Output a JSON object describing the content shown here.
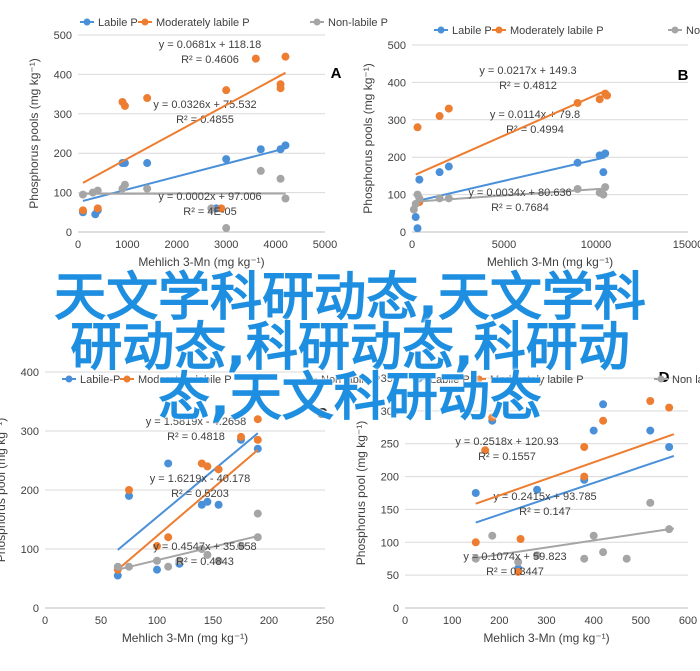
{
  "overlay_lines": [
    "天文学科研动态,天文学科",
    "研动态,科研动态,科研动",
    "态,天文科研动态"
  ],
  "colors": {
    "labile": "#4a90d9",
    "moderately": "#ed7d31",
    "nonlabile": "#a5a5a5"
  },
  "chart_data": [
    {
      "type": "scatter",
      "panel_label": "A",
      "ylabel": "Phosphorus pools (mg kg⁻¹)",
      "xlabel": "Mehlich 3-Mn (mg kg⁻¹)",
      "xlim": [
        0,
        5000
      ],
      "ylim": [
        0,
        500
      ],
      "xticks": [
        "0",
        "1000",
        "2000",
        "3000",
        "4000",
        "5000"
      ],
      "yticks": [
        "0",
        "100",
        "200",
        "300",
        "400",
        "500"
      ],
      "legend": [
        "Labile P",
        "Moderately labile P",
        "Non-labile P"
      ],
      "series": [
        {
          "name": "Labile P",
          "color": "labile",
          "points": [
            [
              100,
              50
            ],
            [
              350,
              45
            ],
            [
              400,
              55
            ],
            [
              900,
              175
            ],
            [
              950,
              175
            ],
            [
              1400,
              175
            ],
            [
              2800,
              60
            ],
            [
              3000,
              185
            ],
            [
              3700,
              210
            ],
            [
              4100,
              210
            ],
            [
              4200,
              220
            ]
          ],
          "trend": {
            "slope": 0.0326,
            "intercept": 75.532,
            "x0": 100,
            "x1": 4200
          },
          "eq": "y = 0.0326x + 75.532",
          "r2": "R² = 0.4855"
        },
        {
          "name": "Moderately labile P",
          "color": "moderately",
          "points": [
            [
              100,
              55
            ],
            [
              400,
              60
            ],
            [
              900,
              330
            ],
            [
              950,
              320
            ],
            [
              1400,
              340
            ],
            [
              2900,
              60
            ],
            [
              3000,
              360
            ],
            [
              3600,
              440
            ],
            [
              4100,
              365
            ],
            [
              4100,
              375
            ],
            [
              4200,
              445
            ]
          ],
          "trend": {
            "slope": 0.0681,
            "intercept": 118,
            "x0": 100,
            "x1": 4200
          },
          "eq": "y = 0.0681x + 118.18",
          "r2": "R² = 0.4606"
        },
        {
          "name": "Non-labile P",
          "color": "nonlabile",
          "points": [
            [
              100,
              95
            ],
            [
              300,
              100
            ],
            [
              400,
              105
            ],
            [
              900,
              110
            ],
            [
              950,
              120
            ],
            [
              1400,
              110
            ],
            [
              2700,
              60
            ],
            [
              3000,
              10
            ],
            [
              3700,
              155
            ],
            [
              4100,
              135
            ],
            [
              4200,
              85
            ]
          ],
          "trend": {
            "slope": 0.0002,
            "intercept": 97.006,
            "x0": 100,
            "x1": 4200
          },
          "eq": "y = 0.0002x + 97.006",
          "r2": "R² = 4E-05"
        }
      ]
    },
    {
      "type": "scatter",
      "panel_label": "B",
      "ylabel": "Phosphorus pools (mg kg⁻¹)",
      "xlabel": "Mehlich 3-Mn (mg kg⁻¹)",
      "xlim": [
        0,
        15000
      ],
      "ylim": [
        0,
        500
      ],
      "xticks": [
        "0",
        "5000",
        "10000",
        "15000"
      ],
      "yticks": [
        "0",
        "100",
        "200",
        "300",
        "400",
        "500"
      ],
      "legend": [
        "Labile P",
        "Moderately labile P",
        "Non-labile P"
      ],
      "series": [
        {
          "name": "Labile P",
          "color": "labile",
          "points": [
            [
              200,
              40
            ],
            [
              300,
              10
            ],
            [
              400,
              140
            ],
            [
              1500,
              160
            ],
            [
              2000,
              175
            ],
            [
              9000,
              185
            ],
            [
              10200,
              205
            ],
            [
              10500,
              210
            ],
            [
              10400,
              160
            ]
          ],
          "trend": {
            "slope": 0.0114,
            "intercept": 79.8,
            "x0": 200,
            "x1": 10500
          },
          "eq": "y = 0.0114x + 79.8",
          "r2": "R² = 0.4994"
        },
        {
          "name": "Moderately labile P",
          "color": "moderately",
          "points": [
            [
              300,
              280
            ],
            [
              400,
              80
            ],
            [
              1500,
              310
            ],
            [
              2000,
              330
            ],
            [
              9000,
              345
            ],
            [
              10200,
              355
            ],
            [
              10500,
              370
            ],
            [
              10600,
              365
            ]
          ],
          "trend": {
            "slope": 0.0217,
            "intercept": 149.3,
            "x0": 200,
            "x1": 10500
          },
          "eq": "y = 0.0217x + 149.3",
          "r2": "R² = 0.4812"
        },
        {
          "name": "Non-labile P",
          "color": "nonlabile",
          "points": [
            [
              100,
              60
            ],
            [
              200,
              75
            ],
            [
              300,
              100
            ],
            [
              400,
              90
            ],
            [
              1500,
              90
            ],
            [
              2000,
              90
            ],
            [
              9000,
              115
            ],
            [
              10200,
              105
            ],
            [
              10500,
              120
            ],
            [
              10400,
              100
            ]
          ],
          "trend": {
            "slope": 0.0034,
            "intercept": 80.636,
            "x0": 100,
            "x1": 10500
          },
          "eq": "y = 0.0034x + 80.636",
          "r2": "R² = 0.7684"
        }
      ]
    },
    {
      "type": "scatter",
      "panel_label": "C",
      "ylabel": "Phosphorus pool (mg kg⁻¹)",
      "xlabel": "Mehlich 3-Mn (mg kg⁻¹)",
      "xlim": [
        0,
        250
      ],
      "ylim": [
        0,
        400
      ],
      "xticks": [
        "0",
        "50",
        "100",
        "150",
        "200",
        "250"
      ],
      "yticks": [
        "0",
        "100",
        "200",
        "300",
        "400"
      ],
      "legend": [
        "Labile-P",
        "Moderately labile P",
        "Non labile P"
      ],
      "series": [
        {
          "name": "Labile-P",
          "color": "labile",
          "points": [
            [
              65,
              55
            ],
            [
              75,
              190
            ],
            [
              100,
              65
            ],
            [
              110,
              245
            ],
            [
              120,
              75
            ],
            [
              140,
              175
            ],
            [
              145,
              180
            ],
            [
              155,
              175
            ],
            [
              175,
              285
            ],
            [
              190,
              270
            ]
          ],
          "trend": {
            "slope": 1.5819,
            "intercept": -4.2658,
            "x0": 65,
            "x1": 190
          },
          "eq": "y = 1.5819x - 4.2658",
          "r2": "R² = 0.4818"
        },
        {
          "name": "Moderately labile P",
          "color": "moderately",
          "points": [
            [
              65,
              65
            ],
            [
              75,
              200
            ],
            [
              100,
              105
            ],
            [
              110,
              120
            ],
            [
              140,
              245
            ],
            [
              145,
              240
            ],
            [
              155,
              235
            ],
            [
              175,
              290
            ],
            [
              190,
              285
            ],
            [
              190,
              320
            ]
          ],
          "trend": {
            "slope": 1.6219,
            "intercept": -40.178,
            "x0": 65,
            "x1": 190
          },
          "eq": "y = 1.6219x - 40.178",
          "r2": "R² = 0.5203"
        },
        {
          "name": "Non labile P",
          "color": "nonlabile",
          "points": [
            [
              65,
              70
            ],
            [
              75,
              70
            ],
            [
              100,
              80
            ],
            [
              110,
              70
            ],
            [
              120,
              80
            ],
            [
              140,
              100
            ],
            [
              145,
              90
            ],
            [
              155,
              80
            ],
            [
              175,
              105
            ],
            [
              190,
              160
            ],
            [
              190,
              120
            ]
          ],
          "trend": {
            "slope": 0.4547,
            "intercept": 35.558,
            "x0": 65,
            "x1": 190
          },
          "eq": "y = 0.4547x + 35.558",
          "r2": "R² = 0.4843"
        }
      ]
    },
    {
      "type": "scatter",
      "panel_label": "D",
      "ylabel": "Phosphorus pool (mg kg⁻¹)",
      "xlabel": "Mehlich 3-Mn (mg kg⁻¹)",
      "xlim": [
        0,
        600
      ],
      "ylim": [
        0,
        350
      ],
      "xticks": [
        "0",
        "100",
        "200",
        "300",
        "400",
        "500",
        "600"
      ],
      "yticks": [
        "0",
        "50",
        "100",
        "150",
        "200",
        "250",
        "300",
        "350"
      ],
      "legend": [
        "Labile P",
        "Moderately labile P",
        "Non labile P"
      ],
      "series": [
        {
          "name": "Labile P",
          "color": "labile",
          "points": [
            [
              150,
              175
            ],
            [
              185,
              285
            ],
            [
              240,
              60
            ],
            [
              280,
              180
            ],
            [
              380,
              195
            ],
            [
              400,
              270
            ],
            [
              420,
              310
            ],
            [
              520,
              270
            ],
            [
              560,
              245
            ]
          ],
          "trend": {
            "slope": 0.2415,
            "intercept": 93.785,
            "x0": 150,
            "x1": 570
          },
          "eq": "y = 0.2415x + 93.785",
          "r2": "R² = 0.147"
        },
        {
          "name": "Moderately labile P",
          "color": "moderately",
          "points": [
            [
              150,
              100
            ],
            [
              170,
              240
            ],
            [
              185,
              290
            ],
            [
              245,
              105
            ],
            [
              240,
              55
            ],
            [
              380,
              245
            ],
            [
              380,
              200
            ],
            [
              420,
              285
            ],
            [
              520,
              315
            ],
            [
              560,
              305
            ]
          ],
          "trend": {
            "slope": 0.2518,
            "intercept": 120.93,
            "x0": 150,
            "x1": 570
          },
          "eq": "y = 0.2518x + 120.93",
          "r2": "R² = 0.1557"
        },
        {
          "name": "Non labile P",
          "color": "nonlabile",
          "points": [
            [
              150,
              75
            ],
            [
              185,
              110
            ],
            [
              240,
              70
            ],
            [
              280,
              80
            ],
            [
              380,
              75
            ],
            [
              400,
              110
            ],
            [
              420,
              85
            ],
            [
              470,
              75
            ],
            [
              520,
              160
            ],
            [
              560,
              120
            ]
          ],
          "trend": {
            "slope": 0.1074,
            "intercept": 59.823,
            "x0": 150,
            "x1": 570
          },
          "eq": "y = 0.1074x + 59.823",
          "r2": "R² = 0.3447"
        }
      ]
    }
  ]
}
